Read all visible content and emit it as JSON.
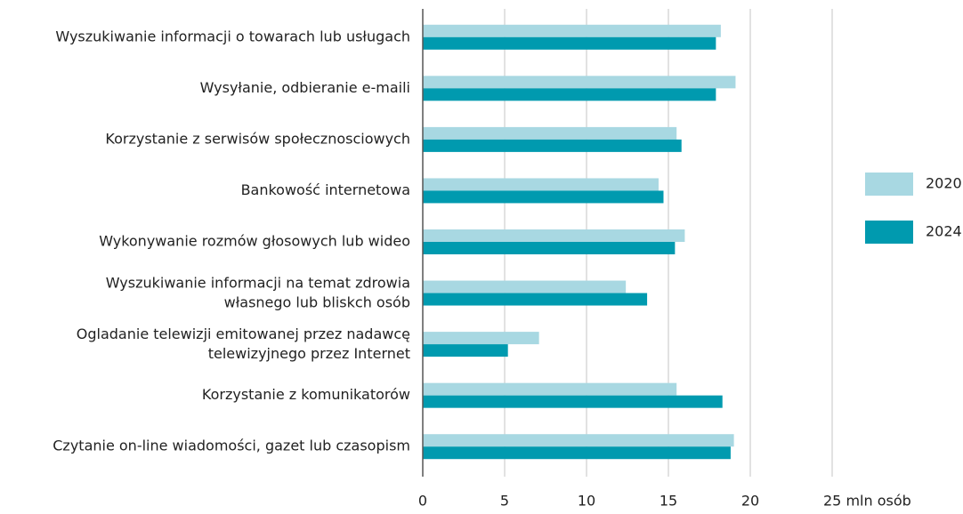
{
  "chart_data": {
    "type": "barh",
    "categories": [
      "Wyszukiwanie informacji o towarach lub usługach",
      "Wysyłanie, odbieranie e-maili",
      "Korzystanie z serwisów społecznosciowych",
      "Bankowość internetowa",
      "Wykonywanie rozmów głosowych lub wideo",
      "Wyszukiwanie informacji na temat zdrowia\nwłasnego lub bliskch osób",
      "Ogladanie telewizji emitowanej przez nadawcę\ntelewizyjnego przez Internet",
      "Korzystanie z komunikatorów",
      "Czytanie on-line wiadomości, gazet lub czasopism"
    ],
    "series": [
      {
        "name": "2020",
        "color": "#a8d8e2",
        "values": [
          18.2,
          19.1,
          15.5,
          14.4,
          16.0,
          12.4,
          7.1,
          15.5,
          19.0
        ]
      },
      {
        "name": "2024",
        "color": "#009aaf",
        "values": [
          17.9,
          17.9,
          15.8,
          14.7,
          15.4,
          13.7,
          5.2,
          18.3,
          18.8
        ]
      }
    ],
    "xlim": [
      0,
      25
    ],
    "xticks": [
      0,
      5,
      10,
      15,
      20,
      {
        "value": 25,
        "label": "25 mln osób"
      }
    ],
    "grid": true,
    "legend": "right"
  }
}
